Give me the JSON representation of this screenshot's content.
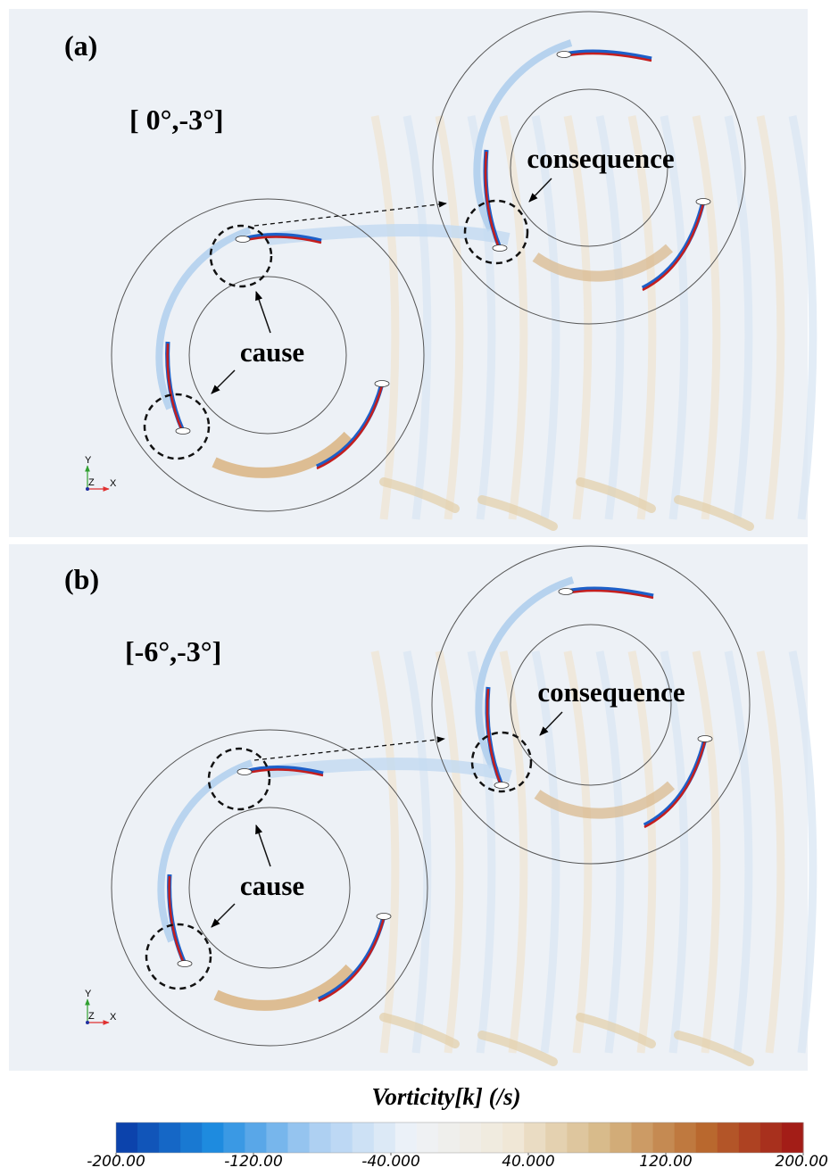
{
  "panels": [
    {
      "label": "(a)",
      "angles": "[ 0°,-3°]",
      "consequence_label": "consequence",
      "cause_label": "cause",
      "triad": {
        "y": "Y",
        "z": "Z",
        "x": "X"
      }
    },
    {
      "label": "(b)",
      "angles": "[-6°,-3°]",
      "consequence_label": "consequence",
      "cause_label": "cause",
      "triad": {
        "y": "Y",
        "z": "Z",
        "x": "X"
      }
    }
  ],
  "colorbar": {
    "title": "Vorticity[k] (/s)",
    "range": [
      -200,
      200
    ],
    "ticks": [
      {
        "value": -200,
        "label": "-200.00"
      },
      {
        "value": -120,
        "label": "-120.00"
      },
      {
        "value": -40,
        "label": "-40.000"
      },
      {
        "value": 40,
        "label": "40.000"
      },
      {
        "value": 120,
        "label": "120.00"
      },
      {
        "value": 200,
        "label": "200.00"
      }
    ],
    "colors": [
      "#0a3aa6",
      "#1e8ce0",
      "#a9cdf2",
      "#eef3f8",
      "#f1e9da",
      "#d6b784",
      "#b9692e",
      "#a01414"
    ]
  }
}
